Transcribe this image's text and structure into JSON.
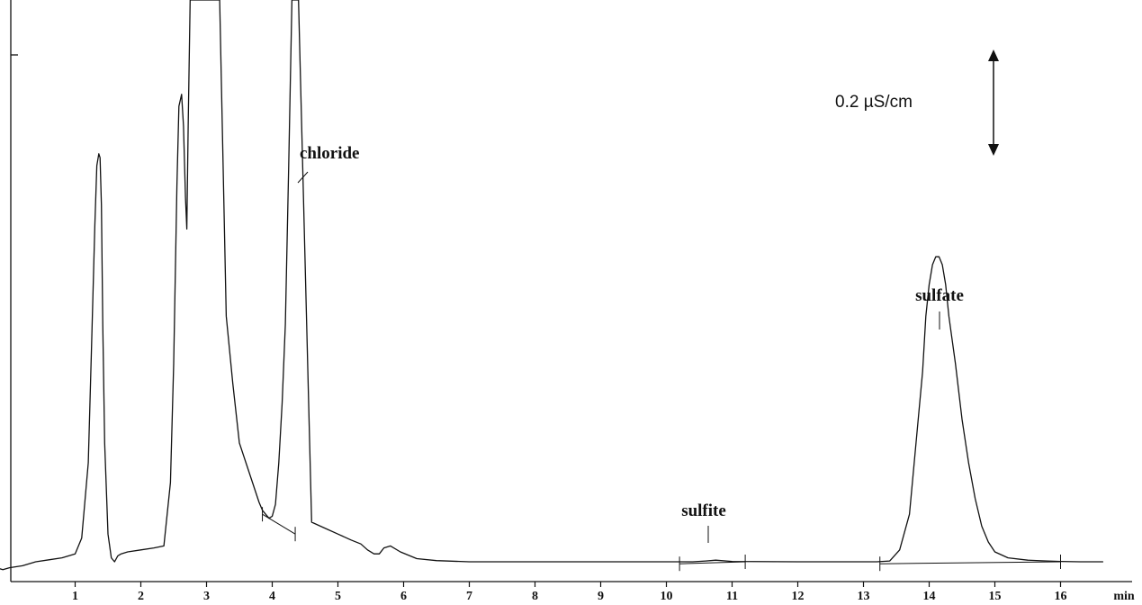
{
  "chart_data": {
    "type": "line",
    "title": "",
    "xlabel": "min",
    "ylabel": "",
    "xlim": [
      -0.4,
      16.7
    ],
    "ylim": [
      -0.05,
      1.45
    ],
    "x_ticks": [
      1,
      2,
      3,
      4,
      5,
      6,
      7,
      8,
      9,
      10,
      11,
      12,
      13,
      14,
      15,
      16
    ],
    "x_unit_label": "min",
    "grid": false,
    "scale_bar": {
      "label": "0.2 µS/cm",
      "value": 0.2
    },
    "series": [
      {
        "x": [
          -0.35,
          -0.3,
          -0.25,
          -0.2,
          -0.1,
          0.0,
          0.2,
          0.4,
          0.6,
          0.8,
          1.0,
          1.1,
          1.2,
          1.25,
          1.3,
          1.33,
          1.36,
          1.38,
          1.4,
          1.42,
          1.45,
          1.5,
          1.55,
          1.6,
          1.65,
          1.7,
          1.8,
          2.0,
          2.2,
          2.35,
          2.45,
          2.5,
          2.55,
          2.58,
          2.62,
          2.65,
          2.68,
          2.7,
          2.72,
          2.75,
          2.8,
          2.85,
          2.9,
          3.0,
          3.1,
          3.2,
          3.3,
          3.4,
          3.5,
          3.6,
          3.7,
          3.8,
          3.85,
          3.9,
          3.95,
          4.0,
          4.05,
          4.1,
          4.15,
          4.2,
          4.25,
          4.3,
          4.4,
          4.6,
          4.8,
          5.0,
          5.2,
          5.35,
          5.45,
          5.55,
          5.63,
          5.7,
          5.8,
          5.95,
          6.2,
          6.5,
          7.0,
          8.0,
          9.0,
          10.0,
          10.4,
          10.6,
          10.75,
          11.0,
          12.0,
          13.0,
          13.2,
          13.4,
          13.55,
          13.7,
          13.8,
          13.9,
          13.95,
          14.0,
          14.05,
          14.1,
          14.15,
          14.2,
          14.25,
          14.3,
          14.4,
          14.5,
          14.6,
          14.7,
          14.8,
          14.9,
          15.0,
          15.2,
          15.5,
          15.8,
          16.0,
          16.3,
          16.65
        ],
        "y": [
          -0.03,
          -0.05,
          -0.02,
          -0.015,
          -0.02,
          -0.015,
          -0.01,
          0.0,
          0.005,
          0.01,
          0.02,
          0.06,
          0.25,
          0.55,
          0.85,
          1.0,
          1.03,
          1.02,
          0.9,
          0.6,
          0.3,
          0.07,
          0.01,
          0.0,
          0.015,
          0.02,
          0.025,
          0.03,
          0.035,
          0.04,
          0.2,
          0.5,
          0.95,
          1.15,
          1.18,
          1.1,
          0.92,
          0.84,
          1.1,
          1.45,
          1.45,
          1.45,
          1.45,
          1.45,
          1.45,
          1.45,
          0.62,
          0.45,
          0.3,
          0.25,
          0.2,
          0.15,
          0.13,
          0.12,
          0.11,
          0.115,
          0.145,
          0.25,
          0.4,
          0.6,
          1.0,
          1.45,
          1.45,
          0.1,
          0.085,
          0.07,
          0.055,
          0.045,
          0.03,
          0.02,
          0.02,
          0.035,
          0.04,
          0.025,
          0.008,
          0.003,
          0.0,
          0.0,
          0.0,
          0.0,
          0.0,
          0.002,
          0.004,
          0.001,
          0.0,
          0.0,
          0.0,
          0.002,
          0.03,
          0.12,
          0.3,
          0.48,
          0.62,
          0.7,
          0.75,
          0.77,
          0.77,
          0.75,
          0.7,
          0.62,
          0.5,
          0.36,
          0.25,
          0.16,
          0.09,
          0.05,
          0.025,
          0.01,
          0.004,
          0.002,
          0.001,
          0.0,
          0.0
        ]
      }
    ],
    "annotations": [
      {
        "label": "chloride",
        "x": 4.15
      },
      {
        "label": "sulfite",
        "x": 10.6
      },
      {
        "label": "sulfate",
        "x": 14.1
      }
    ]
  }
}
